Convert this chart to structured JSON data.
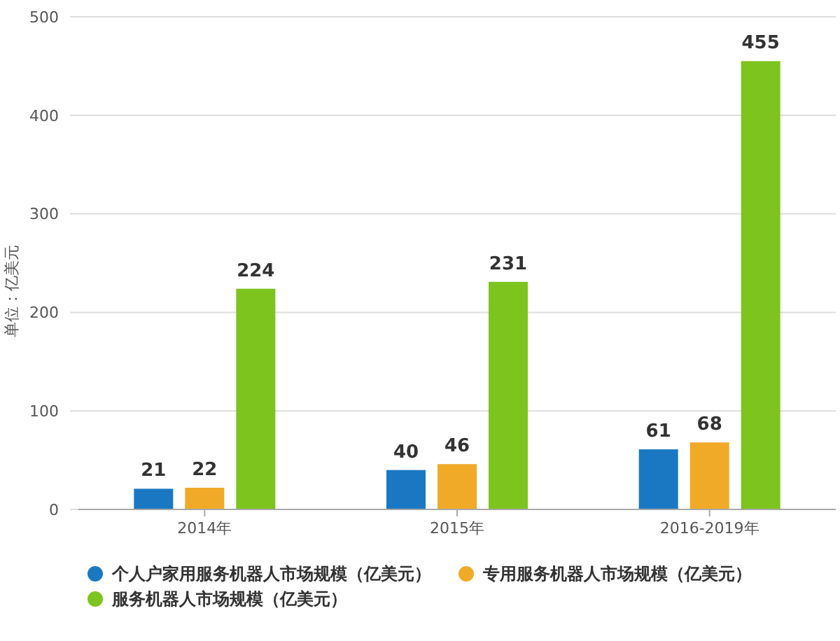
{
  "chart_data": {
    "type": "bar",
    "ylabel": "单位：亿美元",
    "categories": [
      "2014年",
      "2015年",
      "2016-2019年"
    ],
    "series": [
      {
        "name": "个人户家用服务机器人市场规模（亿美元）",
        "color": "#1a78c2",
        "values": [
          21,
          40,
          61
        ]
      },
      {
        "name": "专用服务机器人市场规模（亿美元）",
        "color": "#f0aa27",
        "values": [
          22,
          46,
          68
        ]
      },
      {
        "name": "服务机器人市场规模（亿美元）",
        "color": "#7dc41f",
        "values": [
          224,
          231,
          455
        ]
      }
    ],
    "ylim": [
      0,
      500
    ],
    "yticks": [
      0,
      100,
      200,
      300,
      400,
      500
    ],
    "grid": "y",
    "legend": "bottom",
    "data_labels": true
  }
}
